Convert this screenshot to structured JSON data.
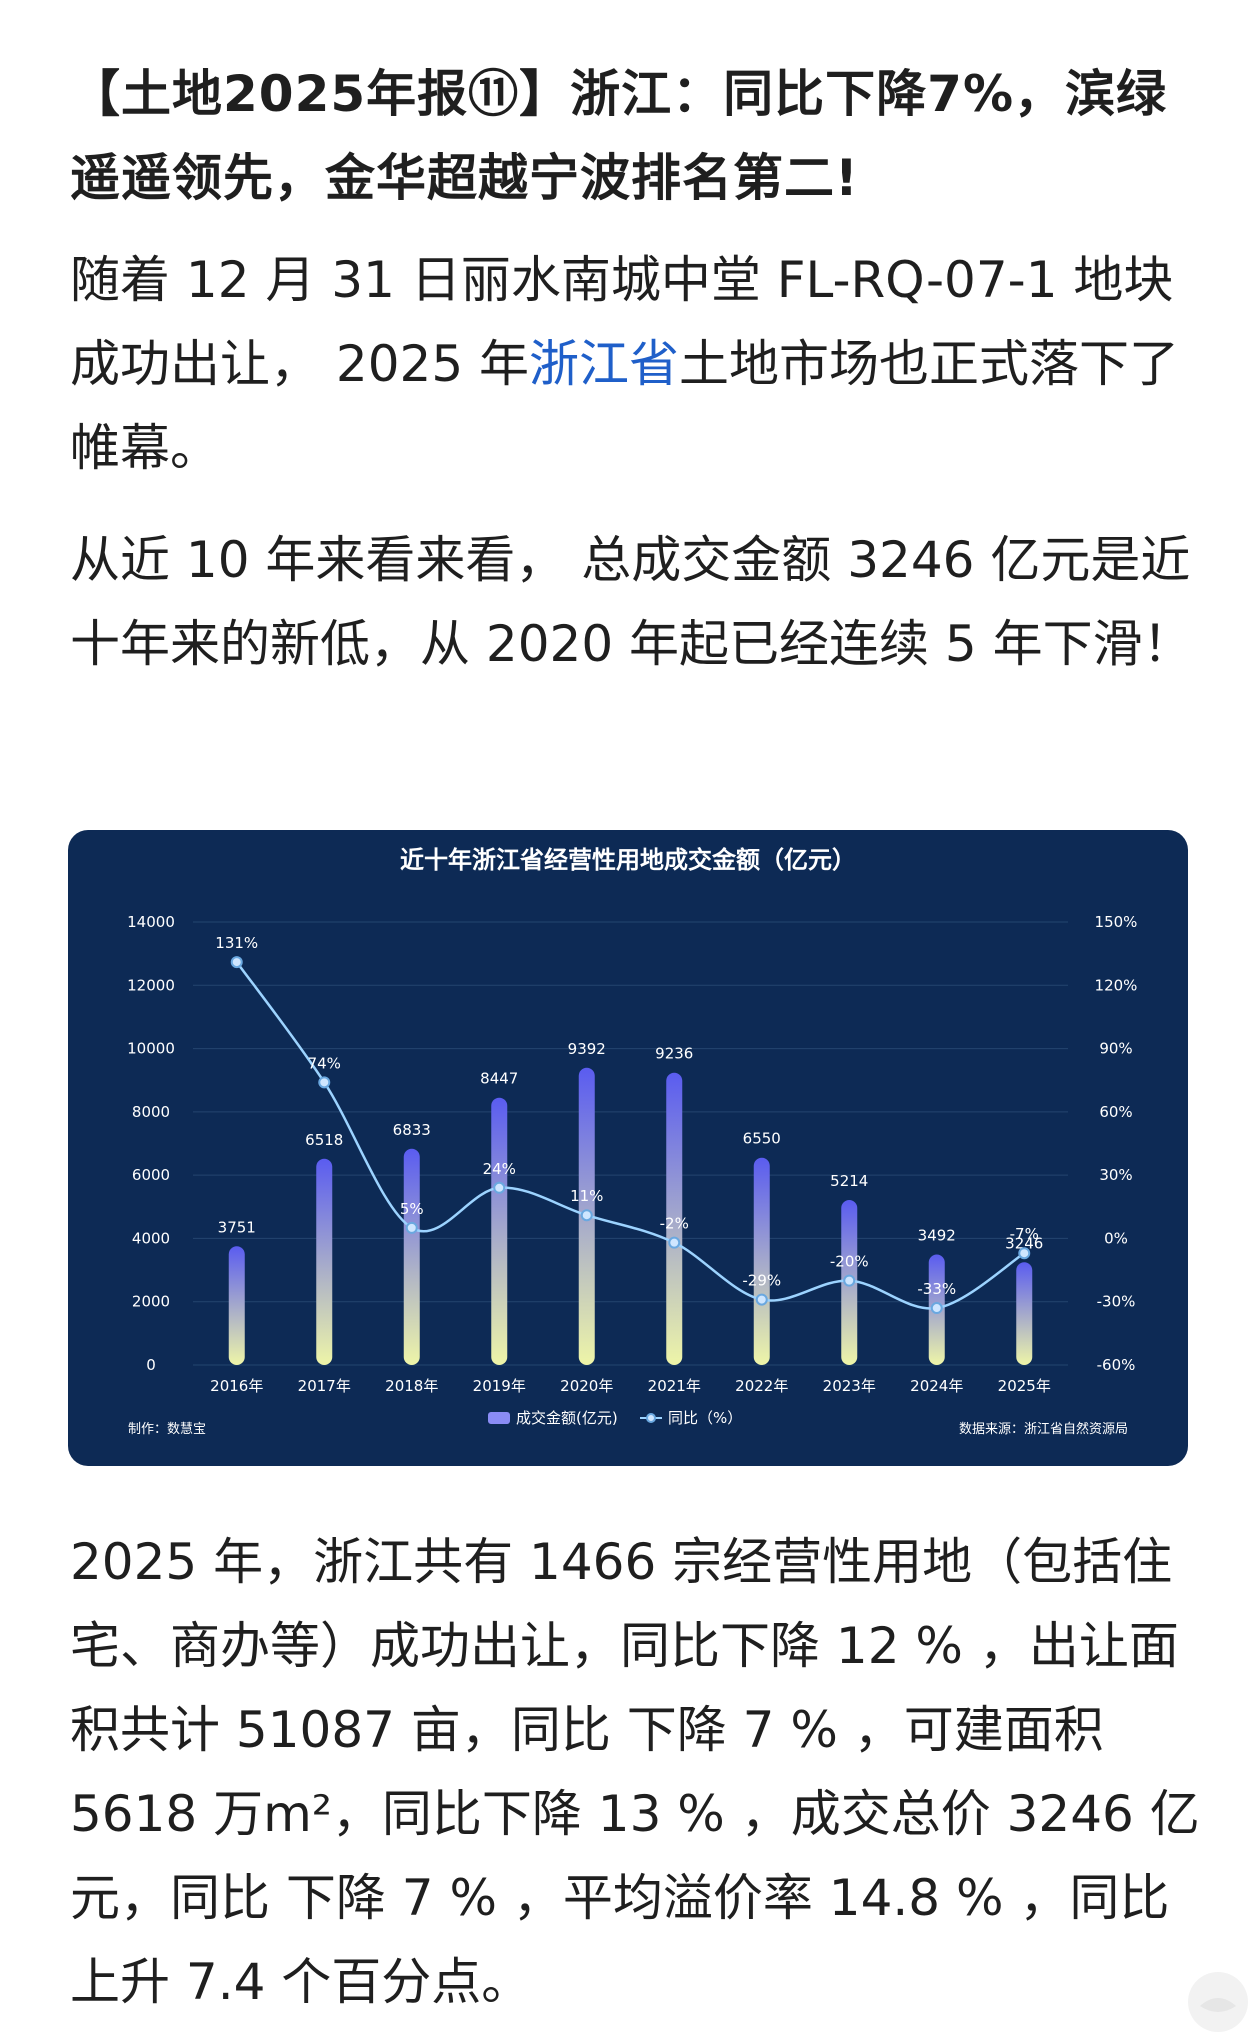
{
  "article": {
    "title": "【土地2025年报⑪】浙江：同比下降7%，滨绿遥遥领先，金华超越宁波排名第二!",
    "p1_before": "随着 12 月 31 日丽水南城中堂 FL-RQ-07-1 地块成功出让， 2025 年",
    "p1_link": "浙江省",
    "p1_after": "土地市场也正式落下了帷幕。",
    "p2": "从近 10 年来看来看， 总成交金额 3246 亿元是近十年来的新低，从 2020 年起已经连续 5 年下滑！",
    "p3": "2025 年，浙江共有 1466 宗经营性用地（包括住宅、商办等）成功出让，同比下降 12 % ，出让面积共计 51087 亩，同比 下降 7 % ，可建面积 5618 万m²，同比下降 13 % ，成交总价 3246 亿元，同比 下降 7 % ，平均溢价率 14.8 % ，同比上升 7.4 个百分点。"
  },
  "chart_data": {
    "type": "bar",
    "title": "近十年浙江省经营性用地成交金额（亿元）",
    "categories": [
      "2016年",
      "2017年",
      "2018年",
      "2019年",
      "2020年",
      "2021年",
      "2022年",
      "2023年",
      "2024年",
      "2025年"
    ],
    "series": [
      {
        "name": "成交金额(亿元)",
        "type": "bar",
        "axis": "left",
        "values": [
          3751,
          6518,
          6833,
          8447,
          9392,
          9236,
          6550,
          5214,
          3492,
          3246
        ],
        "labels": [
          "3751",
          "6518",
          "6833",
          "8447",
          "9392",
          "9236",
          "6550",
          "5214",
          "3492",
          "3246"
        ]
      },
      {
        "name": "同比（%）",
        "type": "line",
        "axis": "right",
        "values": [
          131,
          74,
          5,
          24,
          11,
          -2,
          -29,
          -20,
          -33,
          -7
        ],
        "labels": [
          "131%",
          "74%",
          "5%",
          "24%",
          "11%",
          "-2%",
          "-29%",
          "-20%",
          "-33%",
          "-7%"
        ]
      }
    ],
    "y_left": {
      "min": 0,
      "max": 14000,
      "ticks": [
        "0",
        "2000",
        "4000",
        "6000",
        "8000",
        "10000",
        "12000",
        "14000"
      ]
    },
    "y_right": {
      "min": -60,
      "max": 150,
      "ticks": [
        "-60%",
        "-30%",
        "0%",
        "30%",
        "60%",
        "90%",
        "120%",
        "150%"
      ]
    },
    "grid": true,
    "legend_position": "bottom",
    "footer_left": "制作：数慧宝",
    "footer_right": "数据来源：浙江省自然资源局",
    "colors": {
      "background": "#0d2a55",
      "bar_top": "#5a5cf0",
      "bar_bottom": "#eef5a8",
      "line": "#9cd3ff",
      "text": "#ffffff",
      "grid": "#24456f"
    }
  }
}
